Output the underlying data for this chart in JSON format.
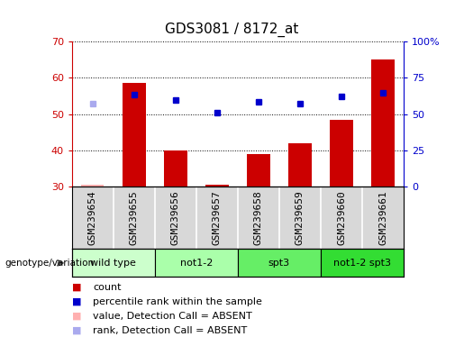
{
  "title": "GDS3081 / 8172_at",
  "samples": [
    "GSM239654",
    "GSM239655",
    "GSM239656",
    "GSM239657",
    "GSM239658",
    "GSM239659",
    "GSM239660",
    "GSM239661"
  ],
  "bar_values": [
    null,
    58.5,
    40.0,
    30.5,
    39.0,
    42.0,
    48.5,
    65.0
  ],
  "bar_absent_values": [
    30.5,
    null,
    null,
    null,
    null,
    null,
    null,
    null
  ],
  "blue_dots": [
    null,
    55.5,
    54.0,
    50.5,
    53.5,
    53.0,
    55.0,
    56.0
  ],
  "blue_absent_dots": [
    53.0,
    null,
    null,
    null,
    null,
    null,
    null,
    null
  ],
  "ylim": [
    30,
    70
  ],
  "y2lim": [
    0,
    100
  ],
  "yticks": [
    30,
    40,
    50,
    60,
    70
  ],
  "y2ticks": [
    0,
    25,
    50,
    75,
    100
  ],
  "y2ticklabels": [
    "0",
    "25",
    "50",
    "75",
    "100%"
  ],
  "bar_color": "#cc0000",
  "bar_absent_color": "#ffb0b0",
  "blue_dot_color": "#0000cc",
  "blue_absent_dot_color": "#aaaaee",
  "genotype_groups": [
    {
      "label": "wild type",
      "start": 0,
      "end": 2,
      "color": "#ccffcc"
    },
    {
      "label": "not1-2",
      "start": 2,
      "end": 4,
      "color": "#aaffaa"
    },
    {
      "label": "spt3",
      "start": 4,
      "end": 6,
      "color": "#66ee66"
    },
    {
      "label": "not1-2 spt3",
      "start": 6,
      "end": 8,
      "color": "#33dd33"
    }
  ],
  "legend_items": [
    {
      "label": "count",
      "color": "#cc0000"
    },
    {
      "label": "percentile rank within the sample",
      "color": "#0000cc"
    },
    {
      "label": "value, Detection Call = ABSENT",
      "color": "#ffb0b0"
    },
    {
      "label": "rank, Detection Call = ABSENT",
      "color": "#aaaaee"
    }
  ],
  "ylabel_left_color": "#cc0000",
  "ylabel_right_color": "#0000cc",
  "sample_area_color": "#d8d8d8",
  "plot_bg_color": "#ffffff",
  "title_fontsize": 11,
  "tick_fontsize": 8,
  "legend_fontsize": 8
}
